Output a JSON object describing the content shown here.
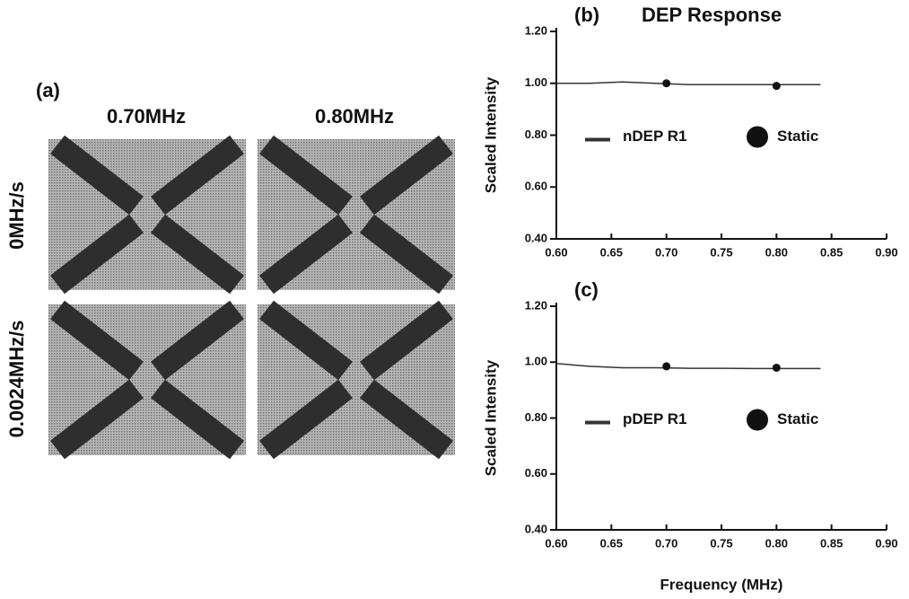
{
  "panel_a": {
    "label": "(a)",
    "columns": [
      "0.70MHz",
      "0.80MHz"
    ],
    "rows": [
      "0MHz/s",
      "0.0024MHz/s"
    ]
  },
  "chart_data": [
    {
      "type": "line",
      "panel_label": "(b)",
      "title": "DEP Response",
      "ylabel": "Scaled Intensity",
      "xlim": [
        0.6,
        0.9
      ],
      "xticks": [
        {
          "value": 0.6,
          "label": "0.60"
        },
        0.65,
        {
          "value": 0.7,
          "label": "0.70"
        },
        0.75,
        {
          "value": 0.8,
          "label": "0.80"
        },
        0.85,
        {
          "value": 0.9,
          "label": "0.90"
        }
      ],
      "ylim": [
        0.4,
        1.2
      ],
      "yticks": [
        {
          "value": 0.4,
          "label": "0.40"
        },
        {
          "value": 0.6,
          "label": "0.60"
        },
        {
          "value": 0.8,
          "label": "0.80"
        },
        {
          "value": 1.0,
          "label": "1.00"
        },
        {
          "value": 1.2,
          "label": "1.20"
        }
      ],
      "legend": "center",
      "series": [
        {
          "name": "nDEP R1",
          "type": "line",
          "color": "#333333",
          "x": [
            0.6,
            0.63,
            0.66,
            0.69,
            0.72,
            0.75,
            0.78,
            0.81,
            0.84
          ],
          "values": [
            1.0,
            1.0,
            1.005,
            1.0,
            0.995,
            0.995,
            0.995,
            0.995,
            0.995
          ]
        },
        {
          "name": "Static",
          "type": "scatter",
          "color": "#111111",
          "x": [
            0.7,
            0.8
          ],
          "values": [
            1.0,
            0.99
          ]
        }
      ]
    },
    {
      "type": "line",
      "panel_label": "(c)",
      "ylabel": "Scaled Intensity",
      "xlabel": "Frequency  (MHz)",
      "xlim": [
        0.6,
        0.9
      ],
      "xticks": [
        {
          "value": 0.6,
          "label": "0.60"
        },
        0.65,
        {
          "value": 0.7,
          "label": "0.70"
        },
        0.75,
        {
          "value": 0.8,
          "label": "0.80"
        },
        0.85,
        {
          "value": 0.9,
          "label": "0.90"
        }
      ],
      "ylim": [
        0.4,
        1.2
      ],
      "yticks": [
        {
          "value": 0.4,
          "label": "0.40"
        },
        {
          "value": 0.6,
          "label": "0.60"
        },
        {
          "value": 0.8,
          "label": "0.80"
        },
        {
          "value": 1.0,
          "label": "1.00"
        },
        {
          "value": 1.2,
          "label": "1.20"
        }
      ],
      "legend": "center",
      "series": [
        {
          "name": "pDEP R1",
          "type": "line",
          "color": "#333333",
          "x": [
            0.6,
            0.63,
            0.66,
            0.69,
            0.72,
            0.75,
            0.78,
            0.81,
            0.84
          ],
          "values": [
            0.995,
            0.985,
            0.98,
            0.98,
            0.978,
            0.978,
            0.977,
            0.977,
            0.977
          ]
        },
        {
          "name": "Static",
          "type": "scatter",
          "color": "#111111",
          "x": [
            0.7,
            0.8
          ],
          "values": [
            0.985,
            0.98
          ]
        }
      ]
    }
  ]
}
